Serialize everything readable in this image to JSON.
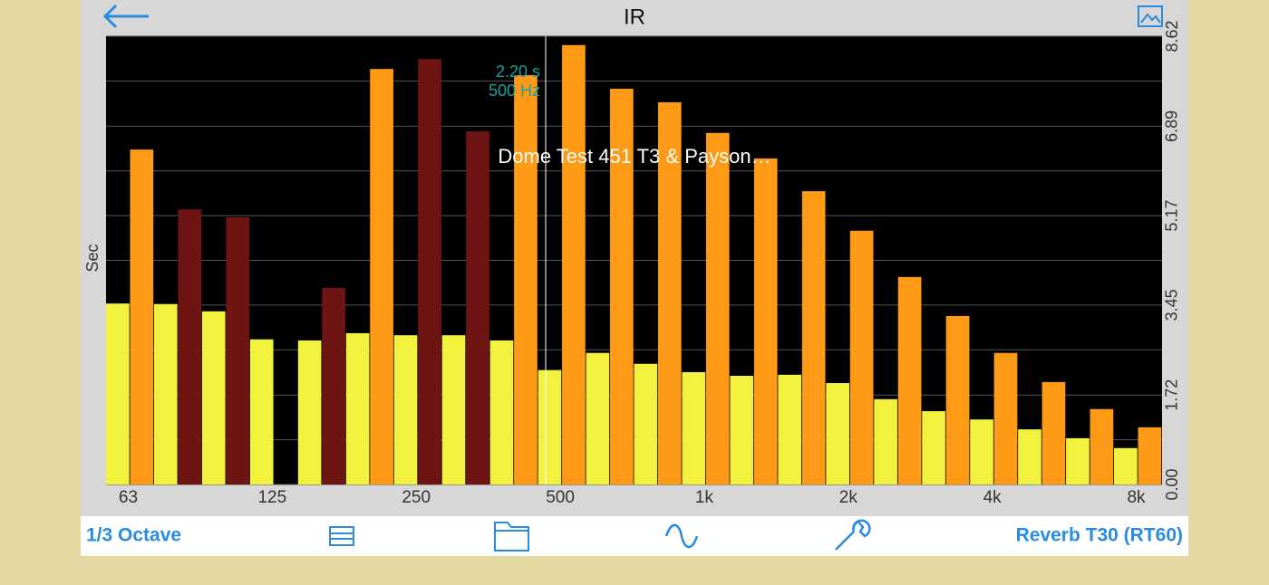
{
  "header": {
    "title": "IR"
  },
  "chart_data": {
    "type": "bar",
    "title": "Dome Test 451 T3 & Payson…",
    "y_label": "Sec",
    "cursor": {
      "value_text": "2.20 s",
      "freq_text": "500 Hz"
    },
    "categories": [
      "63",
      null,
      null,
      "125",
      null,
      null,
      "250",
      null,
      null,
      "500",
      null,
      null,
      "1k",
      null,
      null,
      "2k",
      null,
      null,
      "4k",
      null,
      null,
      "8k"
    ],
    "series": [
      {
        "color": "#f2f23e",
        "values": [
          3.48,
          3.47,
          3.33,
          2.79,
          2.77,
          2.91,
          2.87,
          2.87,
          2.77,
          2.2,
          2.53,
          2.32,
          2.16,
          2.09,
          2.11,
          1.95,
          1.64,
          1.41,
          1.25,
          1.06,
          0.89,
          0.7
        ]
      },
      {
        "colors": [
          "#ff9a17",
          "#6e1412",
          "#6e1412",
          null,
          "#6e1412",
          "#ff9a17",
          "#6e1412",
          "#6e1412",
          "#ff9a17",
          "#ff9a17",
          "#ff9a17",
          "#ff9a17",
          "#ff9a17",
          "#ff9a17",
          "#ff9a17",
          "#ff9a17",
          "#ff9a17",
          "#ff9a17",
          "#ff9a17",
          "#ff9a17",
          "#ff9a17",
          "#ff9a17"
        ],
        "values": [
          6.44,
          5.29,
          5.14,
          null,
          3.78,
          7.99,
          8.18,
          6.79,
          7.87,
          8.45,
          7.61,
          7.35,
          6.76,
          6.27,
          5.64,
          4.88,
          3.99,
          3.24,
          2.53,
          1.97,
          1.45,
          1.1
        ]
      }
    ],
    "ylim": [
      0,
      8.62
    ],
    "yticks": [
      {
        "value": 0,
        "label": "0.00"
      },
      1.72,
      3.45,
      5.17,
      6.89,
      8.62
    ],
    "minor_yticks": [
      0.86,
      2.59,
      4.31,
      6.03,
      7.76
    ],
    "grid": true
  },
  "toolbar": {
    "left": "1/3 Octave",
    "right": "Reverb T30 (RT60)"
  }
}
